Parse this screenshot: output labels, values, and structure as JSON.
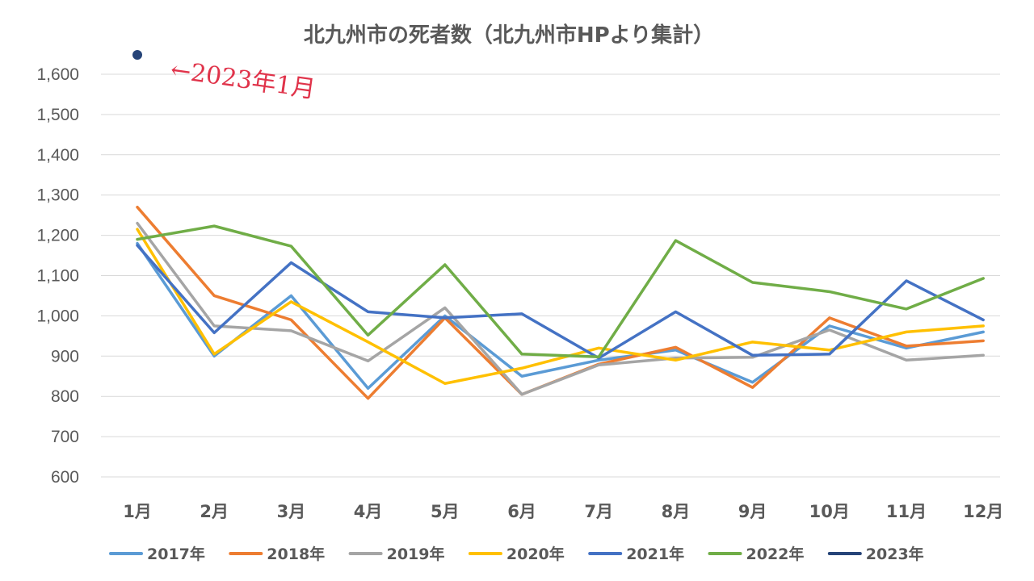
{
  "chart_data": {
    "type": "line",
    "title": "北九州市の死者数（北九州市HPより集計）",
    "xlabel": "",
    "ylabel": "",
    "categories": [
      "1月",
      "2月",
      "3月",
      "4月",
      "5月",
      "6月",
      "7月",
      "8月",
      "9月",
      "10月",
      "11月",
      "12月"
    ],
    "ylim": [
      600,
      1650
    ],
    "yticks": [
      600,
      700,
      800,
      900,
      1000,
      1100,
      1200,
      1300,
      1400,
      1500,
      1600
    ],
    "ytick_labels": [
      "600",
      "700",
      "800",
      "900",
      "1,000",
      "1,100",
      "1,200",
      "1,300",
      "1,400",
      "1,500",
      "1,600"
    ],
    "grid": true,
    "legend_position": "bottom",
    "series": [
      {
        "name": "2017年",
        "color": "#5b9bd5",
        "values": [
          1180,
          900,
          1050,
          820,
          1000,
          850,
          890,
          915,
          835,
          975,
          920,
          960
        ]
      },
      {
        "name": "2018年",
        "color": "#ed7d31",
        "values": [
          1270,
          1050,
          990,
          795,
          995,
          805,
          880,
          922,
          822,
          995,
          925,
          938
        ]
      },
      {
        "name": "2019年",
        "color": "#a5a5a5",
        "values": [
          1230,
          975,
          963,
          888,
          1020,
          805,
          878,
          895,
          897,
          965,
          890,
          902
        ]
      },
      {
        "name": "2020年",
        "color": "#ffc000",
        "values": [
          1215,
          905,
          1035,
          935,
          832,
          870,
          920,
          890,
          935,
          915,
          960,
          975
        ]
      },
      {
        "name": "2021年",
        "color": "#4472c4",
        "values": [
          1175,
          958,
          1132,
          1010,
          995,
          1005,
          895,
          1010,
          902,
          905,
          1087,
          990
        ]
      },
      {
        "name": "2022年",
        "color": "#70ad47",
        "values": [
          1190,
          1223,
          1173,
          952,
          1127,
          905,
          898,
          1187,
          1083,
          1060,
          1017,
          1093
        ]
      },
      {
        "name": "2023年",
        "color": "#264478",
        "values": [
          1648,
          null,
          null,
          null,
          null,
          null,
          null,
          null,
          null,
          null,
          null,
          null
        ]
      }
    ],
    "annotations": [
      {
        "text": "←2023年1月",
        "color": "#e0334a"
      }
    ]
  }
}
